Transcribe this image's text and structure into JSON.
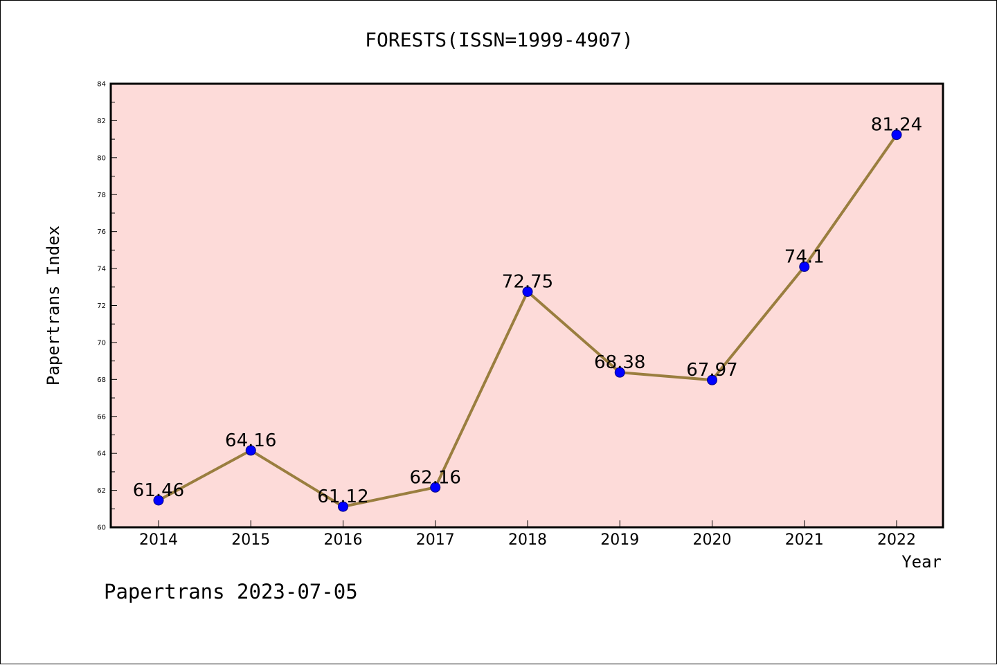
{
  "chart_data": {
    "type": "line",
    "title": "FORESTS(ISSN=1999-4907)",
    "xlabel": "Year",
    "ylabel": "Papertrans Index",
    "categories": [
      "2014",
      "2015",
      "2016",
      "2017",
      "2018",
      "2019",
      "2020",
      "2021",
      "2022"
    ],
    "values": [
      61.46,
      64.16,
      61.12,
      62.16,
      72.75,
      68.38,
      67.97,
      74.1,
      81.24
    ],
    "data_labels": [
      "61.46",
      "64.16",
      "61.12",
      "62.16",
      "72.75",
      "68.38",
      "67.97",
      "74.1",
      "81.24"
    ],
    "ylim": [
      60,
      84
    ],
    "y_ticks": [
      "60",
      "62",
      "64",
      "66",
      "68",
      "70",
      "72",
      "74",
      "76",
      "78",
      "80",
      "82",
      "84"
    ],
    "grid": false,
    "legend": "none",
    "colors": {
      "plot_background": "#fddbd9",
      "line": "#9a7e3f",
      "marker": "#0000ff",
      "marker_edge": "#00007f",
      "frame": "#000000"
    }
  },
  "footer": {
    "text": "Papertrans 2023-07-05"
  }
}
